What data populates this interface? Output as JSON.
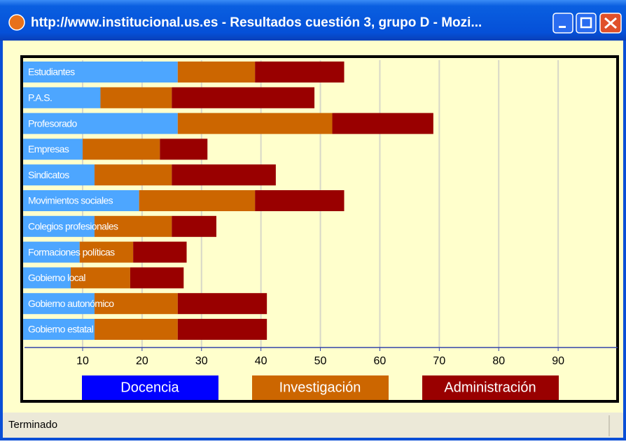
{
  "window": {
    "title": "http://www.institucional.us.es - Resultados cuestión 3, grupo D - Mozi..."
  },
  "status": "Terminado",
  "chart_data": {
    "type": "bar",
    "orientation": "horizontal",
    "stacked": true,
    "categories": [
      "Estudiantes",
      "P.A.S.",
      "Profesorado",
      "Empresas",
      "Sindicatos",
      "Movimientos sociales",
      "Colegios profesionales",
      "Formaciones políticas",
      "Gobierno local",
      "Gobierno autonómico",
      "Gobierno estatal"
    ],
    "series": [
      {
        "name": "Docencia",
        "color": "#4da6ff",
        "legend_color": "#0000ff",
        "values": [
          26,
          13,
          26,
          10,
          12,
          19.5,
          12,
          9.5,
          8,
          12,
          12
        ]
      },
      {
        "name": "Investigación",
        "color": "#cc6600",
        "legend_color": "#cc6600",
        "values": [
          13,
          12,
          26,
          13,
          13,
          19.5,
          13,
          9,
          10,
          14,
          14
        ]
      },
      {
        "name": "Administración",
        "color": "#990000",
        "legend_color": "#990000",
        "values": [
          15,
          24,
          17,
          8,
          17.5,
          15,
          7.5,
          9,
          9,
          15,
          15
        ]
      }
    ],
    "xlim": [
      0,
      100
    ],
    "xticks": [
      10,
      20,
      30,
      40,
      50,
      60,
      70,
      80,
      90
    ],
    "grid": true
  }
}
